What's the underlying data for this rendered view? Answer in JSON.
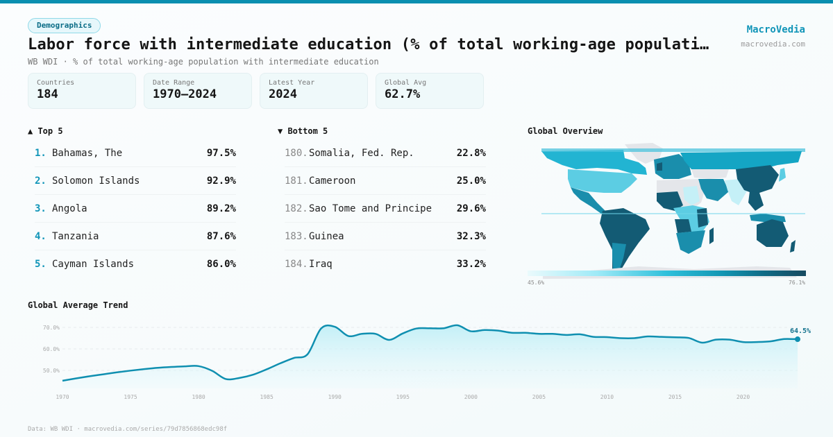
{
  "header": {
    "category_badge": "Demographics",
    "title": "Labor force with intermediate education (% of total working-age populati…",
    "subtitle": "WB WDI · % of total working-age population with intermediate education",
    "brand_name": "MacroVedia",
    "brand_url": "macrovedia.com"
  },
  "stats": [
    {
      "label": "Countries",
      "value": "184"
    },
    {
      "label": "Date Range",
      "value": "1970–2024"
    },
    {
      "label": "Latest Year",
      "value": "2024"
    },
    {
      "label": "Global Avg",
      "value": "62.7%"
    }
  ],
  "top5": {
    "heading": "▲ Top 5",
    "items": [
      {
        "rank": "1.",
        "name": "Bahamas, The",
        "value": "97.5%"
      },
      {
        "rank": "2.",
        "name": "Solomon Islands",
        "value": "92.9%"
      },
      {
        "rank": "3.",
        "name": "Angola",
        "value": "89.2%"
      },
      {
        "rank": "4.",
        "name": "Tanzania",
        "value": "87.6%"
      },
      {
        "rank": "5.",
        "name": "Cayman Islands",
        "value": "86.0%"
      }
    ]
  },
  "bottom5": {
    "heading": "▼ Bottom 5",
    "items": [
      {
        "rank": "180.",
        "name": "Somalia, Fed. Rep.",
        "value": "22.8%"
      },
      {
        "rank": "181.",
        "name": "Cameroon",
        "value": "25.0%"
      },
      {
        "rank": "182.",
        "name": "Sao Tome and Principe",
        "value": "29.6%"
      },
      {
        "rank": "183.",
        "name": "Guinea",
        "value": "32.3%"
      },
      {
        "rank": "184.",
        "name": "Iraq",
        "value": "33.2%"
      }
    ]
  },
  "map": {
    "heading": "Global Overview",
    "legend_min": "45.6%",
    "legend_max": "76.1%"
  },
  "trend": {
    "heading": "Global Average Trend",
    "last_label": "64.5%"
  },
  "footer": {
    "text": "Data: WB WDI · macrovedia.com/series/79d7856868edc98f"
  },
  "colors": {
    "accent": "#1195b8",
    "line": "#0f8fb0",
    "topbar": "#0a8fb0"
  },
  "chart_data": {
    "type": "line",
    "title": "Global Average Trend",
    "xlabel": "",
    "ylabel": "",
    "x_ticks": [
      1970,
      1975,
      1980,
      1985,
      1990,
      1995,
      2000,
      2005,
      2010,
      2015,
      2020
    ],
    "y_ticks": [
      "50.0%",
      "60.0%",
      "70.0%"
    ],
    "ylim": [
      40,
      75
    ],
    "grid": true,
    "x": [
      1970,
      1971,
      1972,
      1973,
      1974,
      1975,
      1976,
      1977,
      1978,
      1979,
      1980,
      1981,
      1982,
      1983,
      1984,
      1985,
      1986,
      1987,
      1988,
      1989,
      1990,
      1991,
      1992,
      1993,
      1994,
      1995,
      1996,
      1997,
      1998,
      1999,
      2000,
      2001,
      2002,
      2003,
      2004,
      2005,
      2006,
      2007,
      2008,
      2009,
      2010,
      2011,
      2012,
      2013,
      2014,
      2015,
      2016,
      2017,
      2018,
      2019,
      2020,
      2021,
      2022,
      2023,
      2024
    ],
    "series": [
      {
        "name": "Global Average",
        "values": [
          45.2,
          46.3,
          47.3,
          48.2,
          49.1,
          49.9,
          50.6,
          51.2,
          51.6,
          51.9,
          52.0,
          49.8,
          46.0,
          46.5,
          48.0,
          50.5,
          53.3,
          55.8,
          57.5,
          69.5,
          70.3,
          66.0,
          67.0,
          67.0,
          64.2,
          67.2,
          69.5,
          69.6,
          69.6,
          71.0,
          68.2,
          68.8,
          68.5,
          67.5,
          67.5,
          67.0,
          67.0,
          66.5,
          66.8,
          65.6,
          65.5,
          65.0,
          65.0,
          65.8,
          65.6,
          65.4,
          65.1,
          62.9,
          64.3,
          64.3,
          63.2,
          63.2,
          63.5,
          64.6,
          64.5
        ]
      }
    ],
    "annotations": [
      {
        "x": 2024,
        "y": 64.5,
        "text": "64.5%"
      }
    ]
  }
}
